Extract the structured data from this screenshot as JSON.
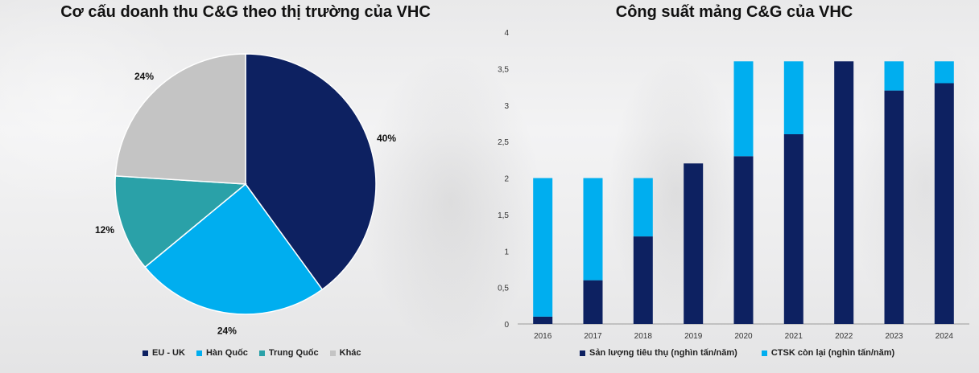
{
  "colors": {
    "navy": "#0d2161",
    "sky": "#00aeef",
    "teal": "#2aa1a8",
    "gray": "#c4c4c4",
    "text": "#111111"
  },
  "chart_data": [
    {
      "type": "pie",
      "title": "Cơ cấu doanh thu C&G theo thị trường của VHC",
      "categories": [
        "EU - UK",
        "Hàn Quốc",
        "Trung Quốc",
        "Khác"
      ],
      "values": [
        40,
        24,
        12,
        24
      ],
      "labels": [
        "40%",
        "24%",
        "12%",
        "24%"
      ],
      "colors": [
        "#0d2161",
        "#00aeef",
        "#2aa1a8",
        "#c4c4c4"
      ],
      "legend": "bottom"
    },
    {
      "type": "bar",
      "stacked": true,
      "title": "Công suất mảng C&G của VHC",
      "categories": [
        "2016",
        "2017",
        "2018",
        "2019",
        "2020",
        "2021",
        "2022",
        "2023",
        "2024"
      ],
      "series": [
        {
          "name": "Sản lượng tiêu thụ (nghìn tấn/năm)",
          "color": "#0d2161",
          "values": [
            0.1,
            0.6,
            1.2,
            2.2,
            2.3,
            2.6,
            3.6,
            3.2,
            3.3
          ]
        },
        {
          "name": "CTSK còn lại (nghìn tấn/năm)",
          "color": "#00aeef",
          "values": [
            1.9,
            1.4,
            0.8,
            0,
            1.3,
            1.0,
            0,
            0.4,
            0.3
          ]
        }
      ],
      "ylim": [
        0,
        4
      ],
      "yticks": [
        "0",
        "0,5",
        "1",
        "1,5",
        "2",
        "2,5",
        "3",
        "3,5",
        "4"
      ],
      "grid": false,
      "legend": "bottom"
    }
  ]
}
